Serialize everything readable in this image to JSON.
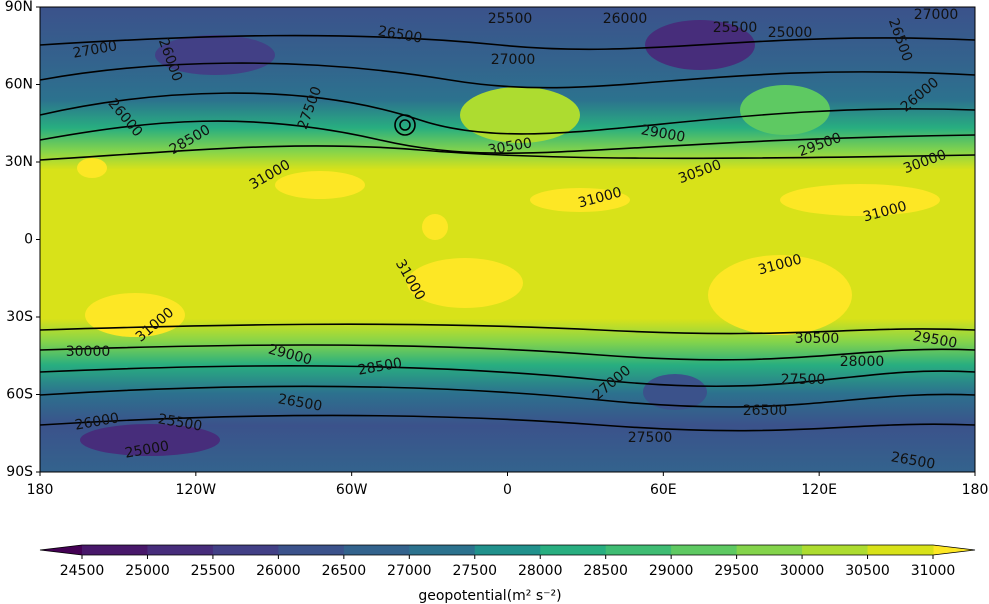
{
  "map": {
    "lat_ticks": [
      "90N",
      "60N",
      "30N",
      "0",
      "30S",
      "60S",
      "90S"
    ],
    "lon_ticks": [
      "180",
      "120W",
      "60W",
      "0",
      "60E",
      "120E",
      "180"
    ],
    "contour_labels": [
      25500,
      26000,
      27000,
      27000,
      26500,
      27000,
      25500,
      25000,
      26000,
      26500,
      26000,
      26000,
      28500,
      27500,
      30500,
      29000,
      29500,
      30000,
      31000,
      30500,
      31000,
      31000,
      31000,
      31000,
      31000,
      30000,
      29000,
      28500,
      30500,
      29500,
      28000,
      27500,
      27000,
      26500,
      26500,
      26000,
      25500,
      25000,
      27500,
      26500
    ],
    "colorbar": {
      "label": "geopotential(m² s⁻²)",
      "ticks": [
        24500,
        25000,
        25500,
        26000,
        26500,
        27000,
        27500,
        28000,
        28500,
        29000,
        29500,
        30000,
        30500,
        31000
      ],
      "colors": [
        "#48186a",
        "#472d7b",
        "#424086",
        "#3b528b",
        "#33638d",
        "#2c728e",
        "#21918c",
        "#28ae80",
        "#3fbc73",
        "#5ec962",
        "#84d44b",
        "#addc30",
        "#d8e219"
      ],
      "under_color": "#440154",
      "over_color": "#fde725"
    }
  }
}
